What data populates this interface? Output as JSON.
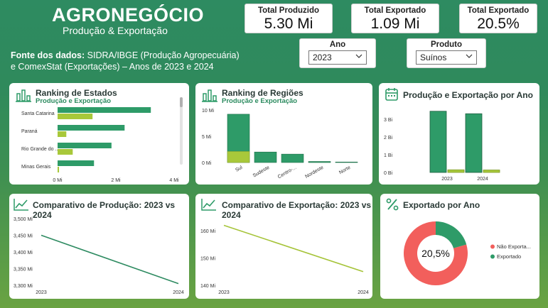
{
  "header": {
    "title": "AGRONEGÓCIO",
    "subtitle": "Produção & Exportação",
    "source_bold": "Fonte dos dados:",
    "source_line1": " SIDRA/IBGE (Produção Agropecuária)",
    "source_line2": "e ComexStat (Exportações) – Anos de 2023 e 2024"
  },
  "kpis": [
    {
      "label": "Total Produzido",
      "value": "5.30 Mi"
    },
    {
      "label": "Total Exportado",
      "value": "1.09 Mi"
    },
    {
      "label": "Total Exportado",
      "value": "20.5%"
    }
  ],
  "filters": {
    "year": {
      "label": "Ano",
      "value": "2023"
    },
    "product": {
      "label": "Produto",
      "value": "Suínos"
    }
  },
  "colors": {
    "dark_green": "#2e9b68",
    "light_green": "#a8c83a",
    "red": "#f25f5c",
    "line_green": "#2e8b61",
    "line_lime": "#a6c43a"
  },
  "cards": {
    "states": {
      "title": "Ranking de Estados",
      "subtitle": "Produção e Exportação",
      "icon": "bar-chart-icon"
    },
    "regions": {
      "title": "Ranking de Regiões",
      "subtitle": "Produção e Exportação",
      "icon": "bar-chart-icon"
    },
    "years": {
      "title": "Produção e Exportação por Ano",
      "icon": "calendar-icon"
    },
    "prod_compare": {
      "title": "Comparativo de Produção: 2023 vs 2024",
      "icon": "line-chart-icon"
    },
    "exp_compare": {
      "title": "Comparativo de Exportação: 2023 vs 2024",
      "icon": "line-chart-icon"
    },
    "exported": {
      "title": "Exportado por Ano",
      "icon": "percent-icon"
    }
  },
  "chart_data": [
    {
      "type": "bar",
      "orientation": "horizontal",
      "categories": [
        "Santa Catarina",
        "Paraná",
        "Rio Grande do ...",
        "Minas Gerais"
      ],
      "series": [
        {
          "name": "Produção",
          "values": [
            3.2,
            2.3,
            1.85,
            1.25
          ]
        },
        {
          "name": "Exportação",
          "values": [
            1.2,
            0.3,
            0.52,
            0.05
          ]
        }
      ],
      "x_ticks": [
        "0 Mi",
        "2 Mi",
        "4 Mi"
      ],
      "xlim": [
        0,
        4
      ]
    },
    {
      "type": "bar",
      "categories": [
        "Sul",
        "Sudeste",
        "Centro-...",
        "Nordeste",
        "Norte"
      ],
      "series": [
        {
          "name": "Produção",
          "values": [
            9.2,
            2.0,
            1.6,
            0.2,
            0.1
          ]
        },
        {
          "name": "Exportação",
          "values": [
            2.1,
            0,
            0,
            0,
            0
          ]
        }
      ],
      "y_ticks": [
        "10 Mi",
        "5 Mi",
        "0 Mi"
      ],
      "ylim": [
        0,
        10
      ]
    },
    {
      "type": "bar",
      "categories": [
        "2023",
        "2024"
      ],
      "series": [
        {
          "name": "Produção",
          "values": [
            3.45,
            3.31
          ]
        },
        {
          "name": "Exportação",
          "values": [
            0.15,
            0.14
          ]
        }
      ],
      "y_ticks": [
        "3 Bi",
        "2 Bi",
        "1 Bi",
        "0 Bi"
      ],
      "ylim": [
        0,
        3.6
      ]
    },
    {
      "type": "line",
      "x": [
        "2023",
        "2024"
      ],
      "series": [
        {
          "values": [
            3450,
            3305
          ]
        }
      ],
      "y_ticks": [
        "3,500 Mi",
        "3,450 Mi",
        "3,400 Mi",
        "3,350 Mi",
        "3,300 Mi"
      ],
      "ylim": [
        3300,
        3500
      ]
    },
    {
      "type": "line",
      "x": [
        "2023",
        "2024"
      ],
      "series": [
        {
          "values": [
            162,
            145
          ]
        }
      ],
      "y_ticks": [
        "160 Mi",
        "150 Mi",
        "140 Mi"
      ],
      "ylim": [
        140,
        165
      ]
    },
    {
      "type": "pie",
      "donut": true,
      "center_label": "20,5%",
      "slices": [
        {
          "name": "Não Exporta...",
          "value": 79.5
        },
        {
          "name": "Exportado",
          "value": 20.5
        }
      ]
    }
  ]
}
